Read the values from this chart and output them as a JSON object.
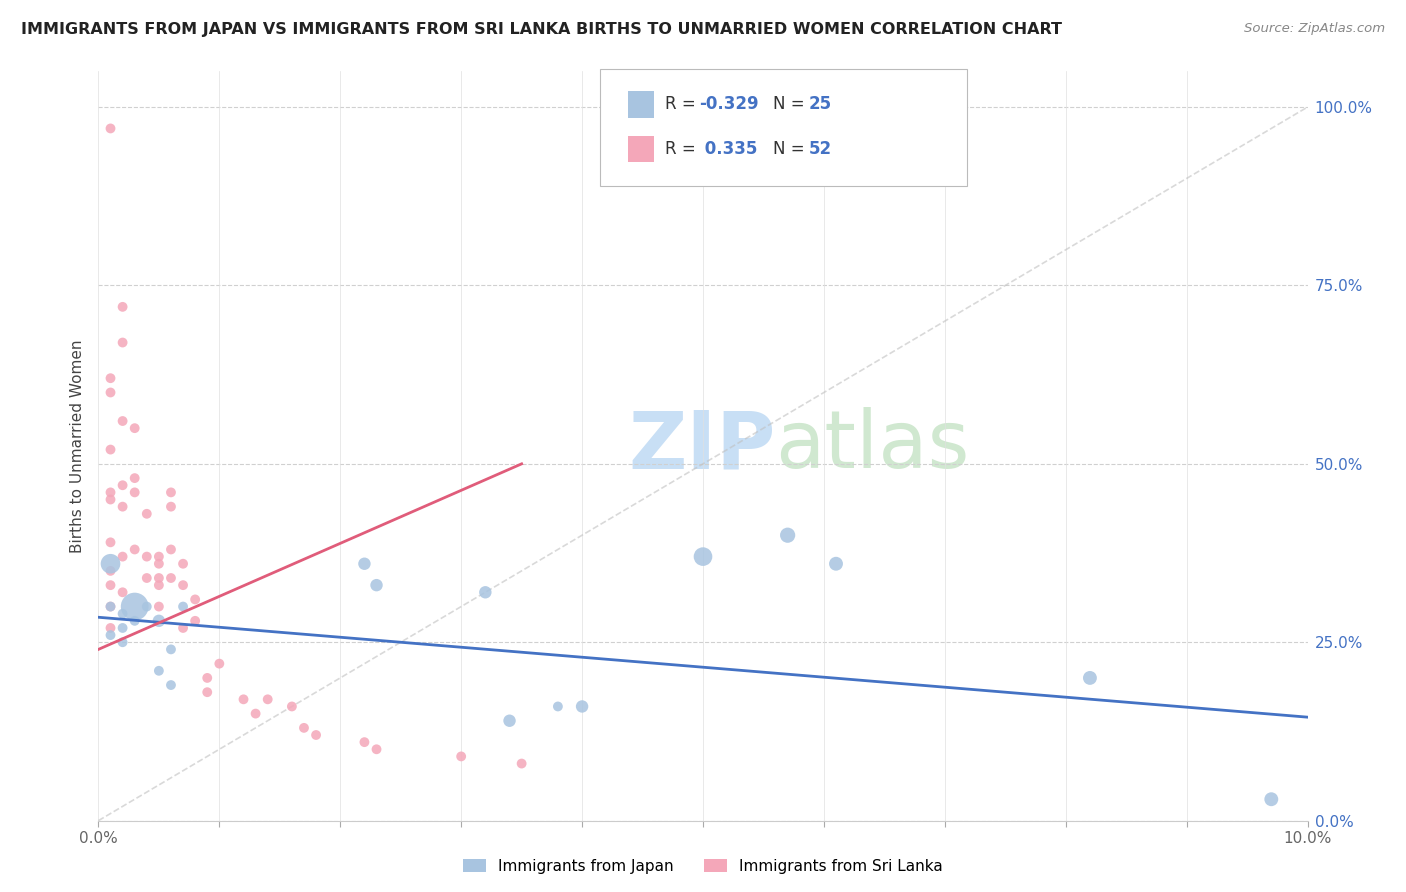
{
  "title": "IMMIGRANTS FROM JAPAN VS IMMIGRANTS FROM SRI LANKA BIRTHS TO UNMARRIED WOMEN CORRELATION CHART",
  "source": "Source: ZipAtlas.com",
  "ylabel": "Births to Unmarried Women",
  "legend_bottom": [
    "Immigrants from Japan",
    "Immigrants from Sri Lanka"
  ],
  "r_japan": "-0.329",
  "n_japan": "25",
  "r_srilanka": "0.335",
  "n_srilanka": "52",
  "xmin": 0.0,
  "xmax": 0.1,
  "ymin": 0.0,
  "ymax": 1.05,
  "right_yticks": [
    0.0,
    0.25,
    0.5,
    0.75,
    1.0
  ],
  "right_yticklabels": [
    "0.0%",
    "25.0%",
    "50.0%",
    "75.0%",
    "100.0%"
  ],
  "xticks": [
    0.0,
    0.01,
    0.02,
    0.03,
    0.04,
    0.05,
    0.06,
    0.07,
    0.08,
    0.09,
    0.1
  ],
  "xticklabels_show": {
    "0.0": "0.0%",
    "10.0": "10.0%"
  },
  "color_japan": "#a8c4e0",
  "color_srilanka": "#f4a7b9",
  "color_japan_line": "#4472c4",
  "color_srilanka_line": "#e05c7a",
  "color_diagonal": "#c0c0c0",
  "background_color": "#ffffff",
  "watermark_zip": "ZIP",
  "watermark_atlas": "atlas",
  "japan_scatter_x": [
    0.001,
    0.001,
    0.001,
    0.002,
    0.002,
    0.002,
    0.003,
    0.003,
    0.004,
    0.005,
    0.005,
    0.006,
    0.006,
    0.007,
    0.022,
    0.023,
    0.032,
    0.034,
    0.038,
    0.04,
    0.05,
    0.057,
    0.061,
    0.082,
    0.097
  ],
  "japan_scatter_y": [
    0.36,
    0.3,
    0.26,
    0.29,
    0.27,
    0.25,
    0.3,
    0.28,
    0.3,
    0.28,
    0.21,
    0.24,
    0.19,
    0.3,
    0.36,
    0.33,
    0.32,
    0.14,
    0.16,
    0.16,
    0.37,
    0.4,
    0.36,
    0.2,
    0.03
  ],
  "japan_scatter_size": [
    200,
    50,
    50,
    50,
    50,
    50,
    400,
    50,
    50,
    80,
    50,
    50,
    50,
    50,
    80,
    80,
    80,
    80,
    50,
    80,
    180,
    120,
    100,
    100,
    100
  ],
  "srilanka_scatter_x": [
    0.001,
    0.001,
    0.001,
    0.001,
    0.001,
    0.001,
    0.001,
    0.001,
    0.001,
    0.001,
    0.001,
    0.002,
    0.002,
    0.002,
    0.002,
    0.002,
    0.002,
    0.002,
    0.003,
    0.003,
    0.003,
    0.003,
    0.004,
    0.004,
    0.004,
    0.005,
    0.005,
    0.005,
    0.005,
    0.005,
    0.006,
    0.006,
    0.006,
    0.006,
    0.007,
    0.007,
    0.007,
    0.008,
    0.008,
    0.009,
    0.009,
    0.01,
    0.012,
    0.013,
    0.014,
    0.016,
    0.017,
    0.018,
    0.022,
    0.023,
    0.03,
    0.035
  ],
  "srilanka_scatter_y": [
    0.97,
    0.62,
    0.6,
    0.52,
    0.46,
    0.45,
    0.39,
    0.35,
    0.33,
    0.3,
    0.27,
    0.72,
    0.67,
    0.56,
    0.47,
    0.44,
    0.37,
    0.32,
    0.55,
    0.48,
    0.46,
    0.38,
    0.43,
    0.37,
    0.34,
    0.37,
    0.36,
    0.34,
    0.33,
    0.3,
    0.46,
    0.44,
    0.38,
    0.34,
    0.36,
    0.33,
    0.27,
    0.31,
    0.28,
    0.2,
    0.18,
    0.22,
    0.17,
    0.15,
    0.17,
    0.16,
    0.13,
    0.12,
    0.11,
    0.1,
    0.09,
    0.08
  ],
  "srilanka_scatter_size": [
    50,
    50,
    50,
    50,
    50,
    50,
    50,
    50,
    50,
    50,
    50,
    50,
    50,
    50,
    50,
    50,
    50,
    50,
    50,
    50,
    50,
    50,
    50,
    50,
    50,
    50,
    50,
    50,
    50,
    50,
    50,
    50,
    50,
    50,
    50,
    50,
    50,
    50,
    50,
    50,
    50,
    50,
    50,
    50,
    50,
    50,
    50,
    50,
    50,
    50,
    50,
    50
  ],
  "japan_trend_x": [
    0.0,
    0.1
  ],
  "japan_trend_y": [
    0.285,
    0.145
  ],
  "srilanka_trend_x": [
    0.0,
    0.035
  ],
  "srilanka_trend_y": [
    0.24,
    0.5
  ]
}
